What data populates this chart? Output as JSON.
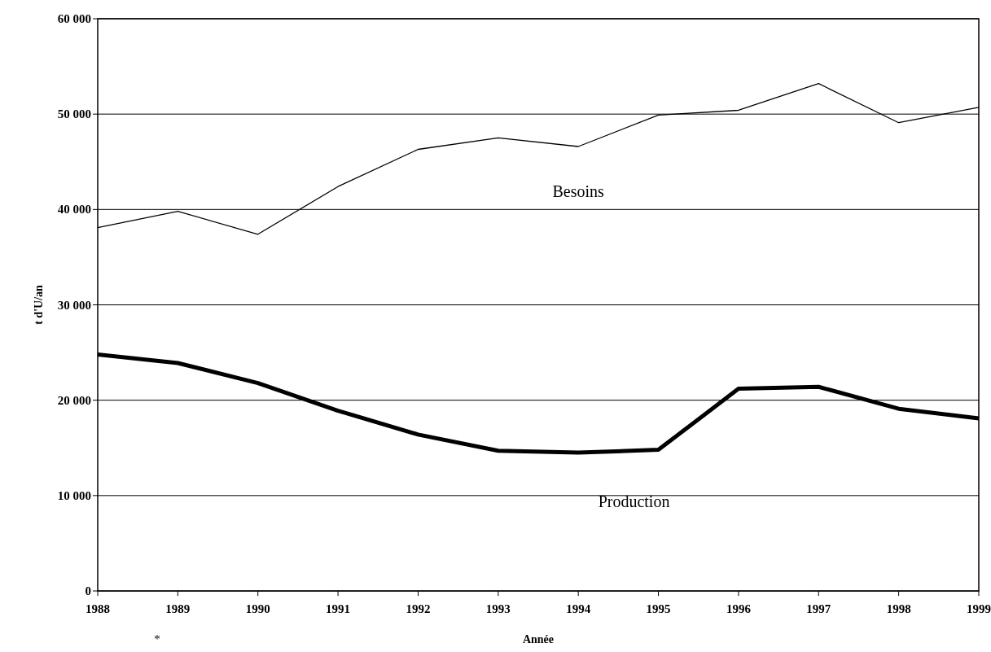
{
  "chart_data": {
    "type": "line",
    "xlabel": "Année",
    "ylabel": "t d'U/an",
    "annotations": [
      "*"
    ],
    "x": [
      1988,
      1989,
      1990,
      1991,
      1992,
      1993,
      1994,
      1995,
      1996,
      1997,
      1998,
      1999
    ],
    "xlim": [
      1988,
      1999
    ],
    "xticks": [
      1988,
      1989,
      1990,
      1991,
      1992,
      1993,
      1994,
      1995,
      1996,
      1997,
      1998,
      1999
    ],
    "ylim": [
      0,
      60000
    ],
    "yticks": [
      {
        "value": 0,
        "label": "0"
      },
      {
        "value": 10000,
        "label": "10 000"
      },
      {
        "value": 20000,
        "label": "20 000"
      },
      {
        "value": 30000,
        "label": "30 000"
      },
      {
        "value": 40000,
        "label": "40 000"
      },
      {
        "value": 50000,
        "label": "50 000"
      },
      {
        "value": 60000,
        "label": "60 000"
      }
    ],
    "grid": "y",
    "marker": "none",
    "line_style": "solid",
    "series": [
      {
        "name": "Besoins",
        "color": "#000000",
        "values": [
          38100,
          39800,
          37400,
          42400,
          46300,
          47500,
          46600,
          49900,
          50400,
          53200,
          49100,
          50700
        ]
      },
      {
        "name": "Production",
        "color": "#000000",
        "values": [
          24800,
          23900,
          21800,
          18900,
          16400,
          14700,
          14500,
          14800,
          21200,
          21400,
          19100,
          18100
        ]
      }
    ]
  }
}
